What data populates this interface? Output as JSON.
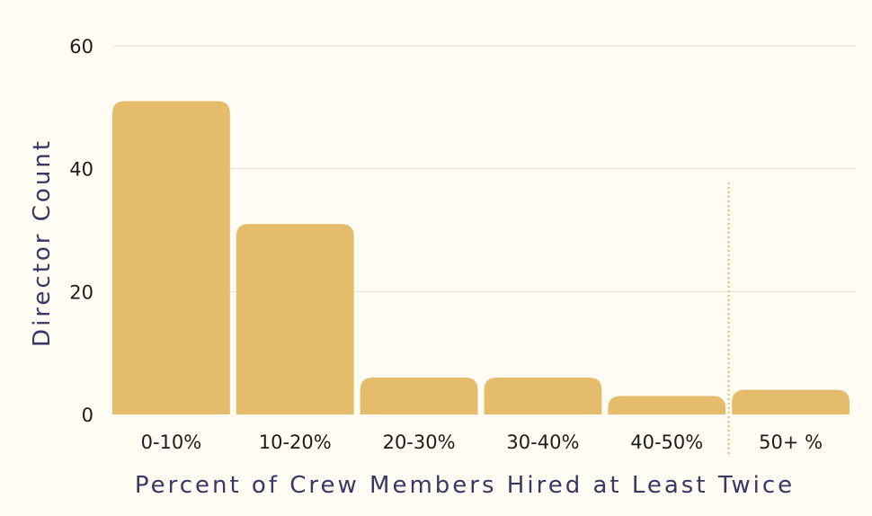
{
  "chart_data": {
    "type": "bar",
    "categories": [
      "0-10%",
      "10-20%",
      "20-30%",
      "30-40%",
      "40-50%",
      "50+ %"
    ],
    "values": [
      51,
      31,
      6,
      6,
      3,
      4
    ],
    "xlabel": "Percent of Crew Members Hired at Least Twice",
    "ylabel": "Director Count",
    "ylim": [
      0,
      60
    ],
    "yticks": [
      0,
      20,
      40,
      60
    ],
    "grid": true,
    "legend": "none",
    "colors": {
      "bar": "#e5bc6c",
      "grid": "#e4e1d6",
      "axis_title": "#3b3664",
      "tick": "#1c1c1c",
      "divider": "#e5bc6c",
      "background": "#fefcf3"
    }
  }
}
